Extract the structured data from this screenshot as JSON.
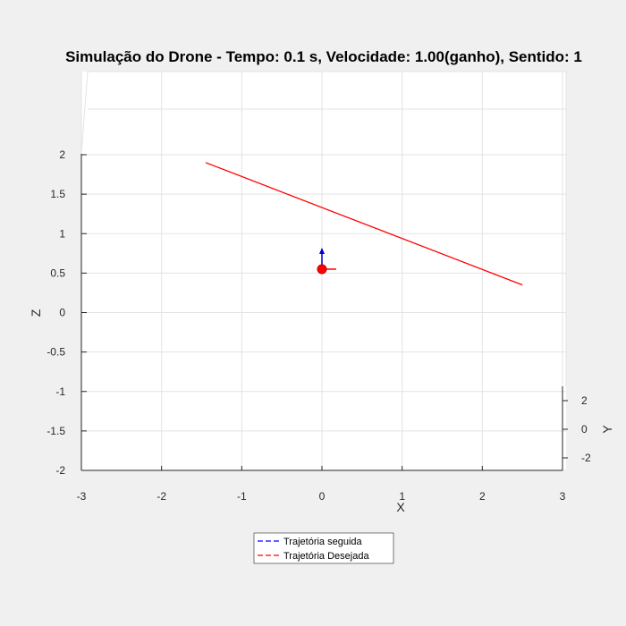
{
  "chart_data": {
    "type": "line",
    "title": "Simulação do Drone - Tempo: 0.1 s, Velocidade: 1.00(ganho), Sentido: 1",
    "xlabel": "X",
    "ylabel": "Y",
    "zlabel": "Z",
    "xlim": [
      -3,
      3
    ],
    "ylim": [
      -3,
      3
    ],
    "zlim": [
      -2,
      2
    ],
    "x_ticks": [
      "-3",
      "-2",
      "-1",
      "0",
      "1",
      "2",
      "3"
    ],
    "y_ticks": [
      "-2",
      "0",
      "2"
    ],
    "z_ticks": [
      "-2",
      "-1.5",
      "-1",
      "-0.5",
      "0",
      "0.5",
      "1",
      "1.5",
      "2"
    ],
    "grid": true,
    "series": [
      {
        "name": "Trajetória seguida",
        "color": "#0000ff",
        "style": "dashed",
        "x": [],
        "z": []
      },
      {
        "name": "Trajetória Desejada",
        "color": "#ff0000",
        "style": "dashed",
        "x": [
          -1.45,
          2.5
        ],
        "z": [
          1.9,
          0.35
        ]
      }
    ],
    "drone": {
      "x": 0,
      "z": 0.55,
      "body_color": "#ff0000",
      "up_arrow_color": "#0000cc",
      "side_arrow_color": "#ff0000"
    },
    "legend_location": "bottom-center"
  }
}
